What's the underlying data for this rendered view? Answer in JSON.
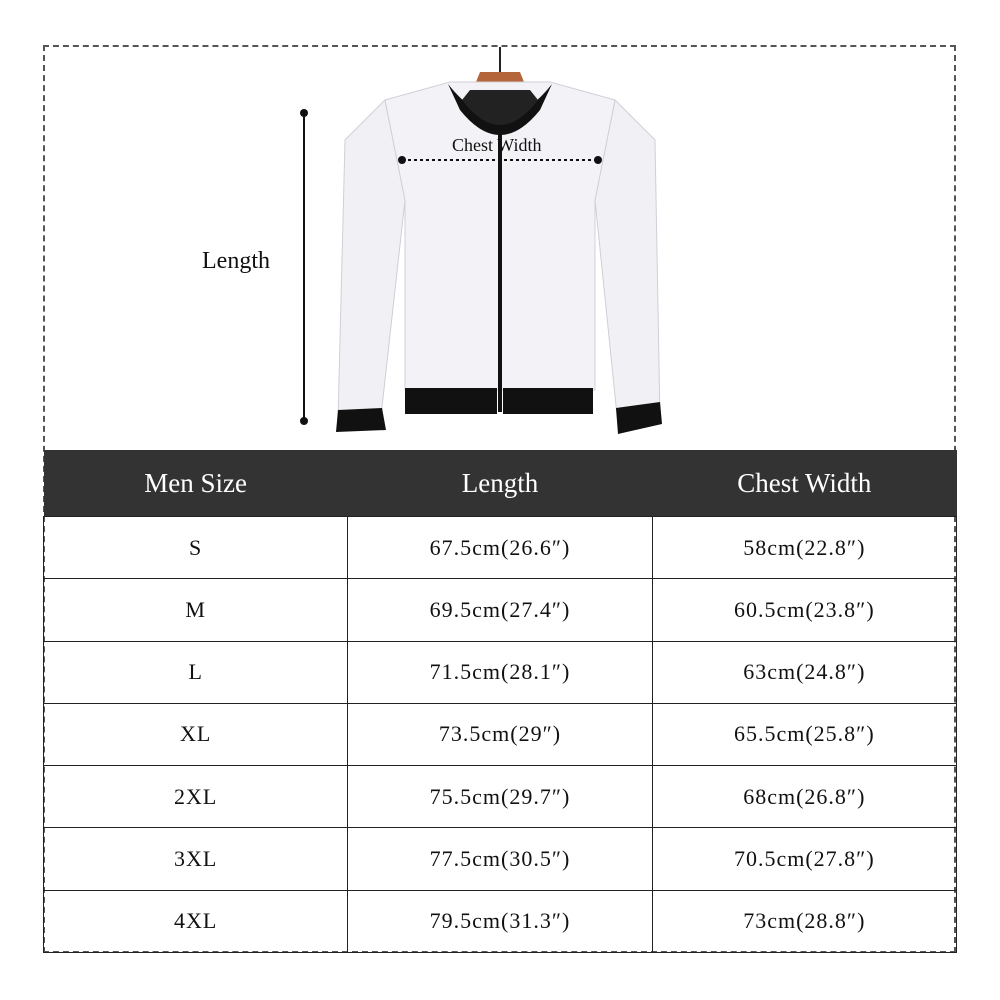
{
  "figure": {
    "length_label": "Length",
    "chest_width_label": "Chest Width"
  },
  "table": {
    "headers": [
      "Men Size",
      "Length",
      "Chest Width"
    ],
    "rows": [
      [
        "S",
        "67.5cm(26.6″)",
        "58cm(22.8″)"
      ],
      [
        "M",
        "69.5cm(27.4″)",
        "60.5cm(23.8″)"
      ],
      [
        "L",
        "71.5cm(28.1″)",
        "63cm(24.8″)"
      ],
      [
        "XL",
        "73.5cm(29″)",
        "65.5cm(25.8″)"
      ],
      [
        "2XL",
        "75.5cm(29.7″)",
        "68cm(26.8″)"
      ],
      [
        "3XL",
        "77.5cm(30.5″)",
        "70.5cm(27.8″)"
      ],
      [
        "4XL",
        "79.5cm(31.3″)",
        "73cm(28.8″)"
      ]
    ]
  },
  "colors": {
    "header_bg": "#333333",
    "jacket": "#f1f0f5",
    "trim": "#111111",
    "hanger": "#b5653a"
  }
}
